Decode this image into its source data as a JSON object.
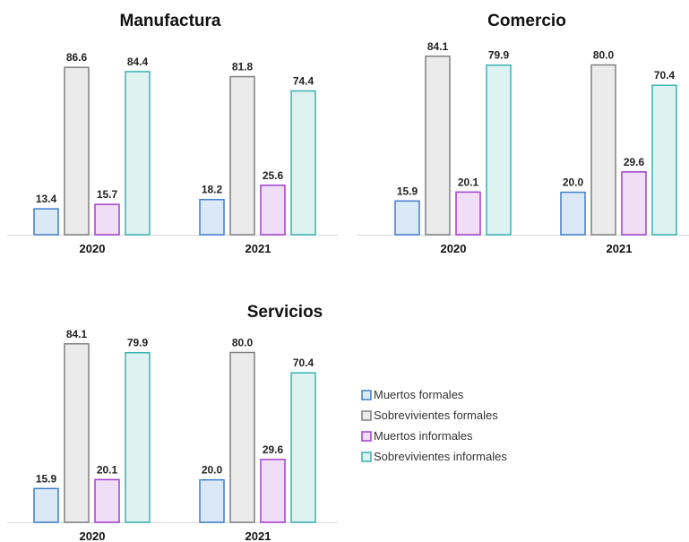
{
  "chart_data": [
    {
      "type": "bar",
      "title": "Manufactura",
      "categories": [
        "2020",
        "2021"
      ],
      "series": [
        {
          "name": "Muertos formales",
          "values": [
            13.4,
            18.2
          ]
        },
        {
          "name": "Sobrevivientes formales",
          "values": [
            86.6,
            81.8
          ]
        },
        {
          "name": "Muertos informales",
          "values": [
            15.7,
            25.6
          ]
        },
        {
          "name": "Sobrevivientes informales",
          "values": [
            84.4,
            74.4
          ]
        }
      ],
      "ylim": [
        0,
        100
      ],
      "grid": false,
      "legend": "right"
    },
    {
      "type": "bar",
      "title": "Comercio",
      "categories": [
        "2020",
        "2021"
      ],
      "series": [
        {
          "name": "Muertos formales",
          "values": [
            15.9,
            20.0
          ]
        },
        {
          "name": "Sobrevivientes formales",
          "values": [
            84.1,
            80.0
          ]
        },
        {
          "name": "Muertos informales",
          "values": [
            20.1,
            29.6
          ]
        },
        {
          "name": "Sobrevivientes informales",
          "values": [
            79.9,
            70.4
          ]
        }
      ],
      "ylim": [
        0,
        100
      ],
      "grid": false,
      "legend": "right"
    },
    {
      "type": "bar",
      "title": "Servicios",
      "categories": [
        "2020",
        "2021"
      ],
      "series": [
        {
          "name": "Muertos formales",
          "values": [
            15.9,
            20.0
          ]
        },
        {
          "name": "Sobrevivientes formales",
          "values": [
            84.1,
            80.0
          ]
        },
        {
          "name": "Muertos informales",
          "values": [
            20.1,
            29.6
          ]
        },
        {
          "name": "Sobrevivientes informales",
          "values": [
            79.9,
            70.4
          ]
        }
      ],
      "ylim": [
        0,
        100
      ],
      "grid": false,
      "legend": "right"
    }
  ],
  "legend": {
    "items": [
      {
        "label": "Muertos formales",
        "fill": "#dbe8f6",
        "stroke": "#3e7fce"
      },
      {
        "label": "Sobrevivientes formales",
        "fill": "#ebebeb",
        "stroke": "#808080"
      },
      {
        "label": "Muertos informales",
        "fill": "#f0def6",
        "stroke": "#a23fcc"
      },
      {
        "label": "Sobrevivientes informales",
        "fill": "#dff2f2",
        "stroke": "#38b3b0"
      }
    ]
  }
}
